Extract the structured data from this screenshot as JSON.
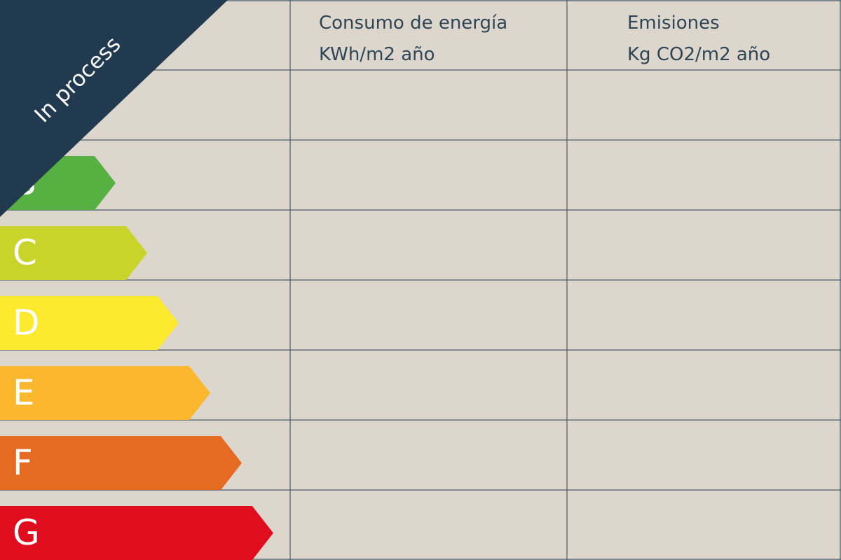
{
  "banner": "In process",
  "table": {
    "headers": [
      [
        "Consumo de energía",
        "KWh/m2 año"
      ],
      [
        "Emisiones",
        "Kg CO2/m2 año"
      ]
    ],
    "ratings": [
      {
        "label": "B",
        "color": "#56b142"
      },
      {
        "label": "C",
        "color": "#c9d42a"
      },
      {
        "label": "D",
        "color": "#fdea2f"
      },
      {
        "label": "E",
        "color": "#fbb72d"
      },
      {
        "label": "F",
        "color": "#e56b22"
      },
      {
        "label": "G",
        "color": "#e00d1f"
      }
    ]
  }
}
